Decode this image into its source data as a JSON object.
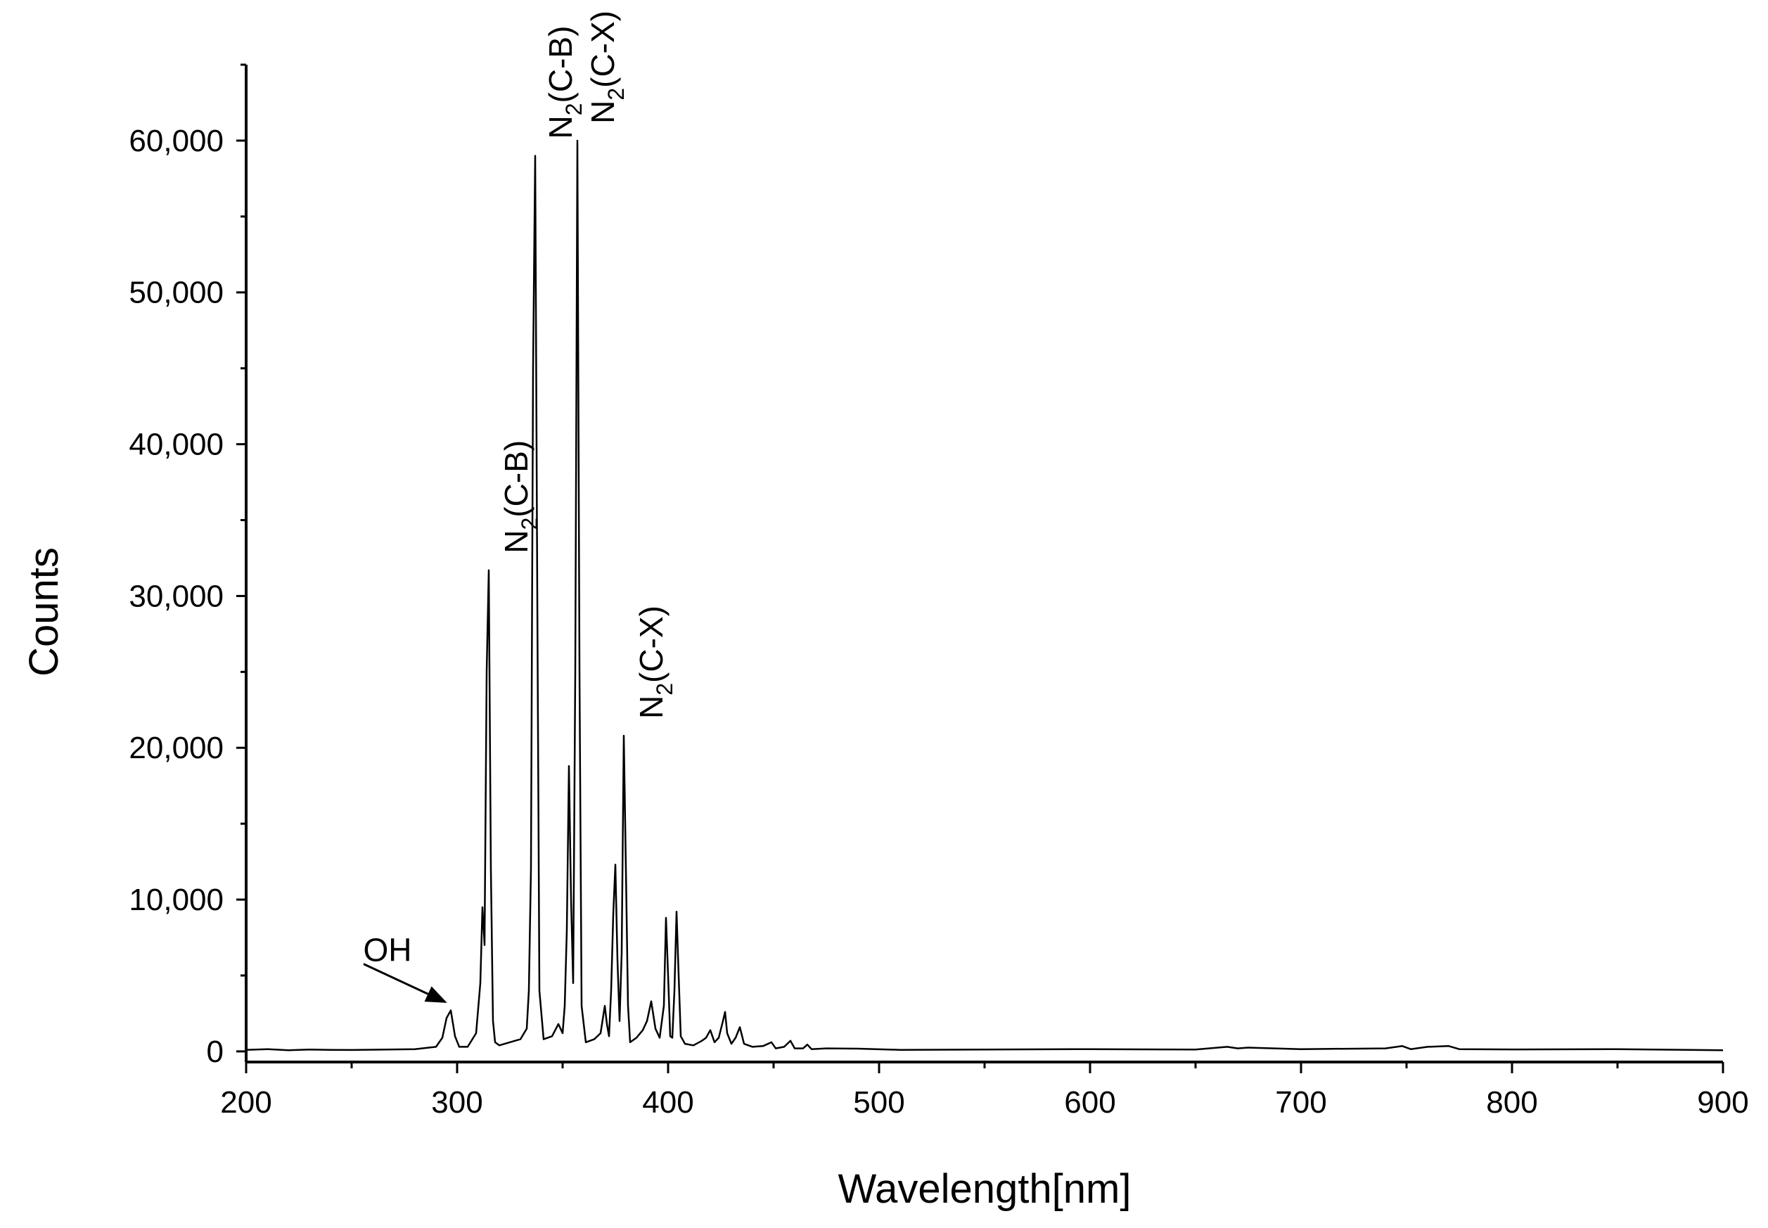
{
  "chart_data": {
    "type": "line",
    "xlabel": "Wavelength[nm]",
    "ylabel": "Counts",
    "xlim": [
      200,
      900
    ],
    "ylim": [
      -700,
      65000
    ],
    "x_ticks": [
      {
        "value": 200,
        "label": "200"
      },
      {
        "value": 300,
        "label": "300"
      },
      {
        "value": 400,
        "label": "400"
      },
      {
        "value": 500,
        "label": "500"
      },
      {
        "value": 600,
        "label": "600"
      },
      {
        "value": 700,
        "label": "700"
      },
      {
        "value": 800,
        "label": "800"
      },
      {
        "value": 900,
        "label": "900"
      }
    ],
    "y_ticks": [
      {
        "value": 0,
        "label": "0"
      },
      {
        "value": 10000,
        "label": "10,000"
      },
      {
        "value": 20000,
        "label": "20,000"
      },
      {
        "value": 30000,
        "label": "30,000"
      },
      {
        "value": 40000,
        "label": "40,000"
      },
      {
        "value": 50000,
        "label": "50,000"
      },
      {
        "value": 60000,
        "label": "60,000"
      }
    ],
    "grid": false,
    "line_color": "#000000",
    "series": [
      {
        "x": [
          200,
          210,
          220,
          230,
          240,
          250,
          260,
          270,
          280,
          290,
          293,
          295,
          297,
          299,
          301,
          305,
          309,
          311,
          312,
          313,
          314,
          315,
          316,
          317,
          318,
          320,
          325,
          330,
          333,
          334,
          335,
          336,
          337,
          338,
          339,
          341,
          345,
          348,
          350,
          351,
          352,
          353,
          354,
          355,
          356,
          357,
          358,
          359,
          361,
          365,
          368,
          370,
          371,
          372,
          373,
          374,
          375,
          376,
          377,
          378,
          379,
          380,
          381,
          382,
          385,
          388,
          390,
          392,
          394,
          396,
          398,
          399,
          400,
          401,
          402,
          403,
          404,
          405,
          406,
          408,
          412,
          416,
          418,
          420,
          422,
          424,
          426,
          427,
          428,
          430,
          432,
          434,
          436,
          440,
          445,
          449,
          451,
          455,
          458,
          460,
          464,
          466,
          468,
          475,
          490,
          510,
          550,
          600,
          650,
          665,
          670,
          675,
          700,
          740,
          748,
          752,
          760,
          770,
          775,
          800,
          850,
          900
        ],
        "y": [
          100,
          150,
          80,
          120,
          100,
          90,
          110,
          130,
          150,
          300,
          900,
          2200,
          2700,
          1000,
          300,
          300,
          1200,
          4500,
          9500,
          7000,
          25000,
          31700,
          12000,
          2000,
          600,
          400,
          600,
          800,
          1500,
          4000,
          12000,
          45000,
          59000,
          30000,
          4000,
          800,
          1000,
          1800,
          1200,
          3000,
          8000,
          18800,
          10000,
          4500,
          25000,
          60000,
          25000,
          3000,
          600,
          800,
          1200,
          3000,
          1800,
          1000,
          4000,
          9000,
          12300,
          6000,
          2000,
          6500,
          20800,
          12000,
          3000,
          600,
          900,
          1400,
          2000,
          3300,
          1500,
          900,
          3000,
          8800,
          5000,
          1000,
          900,
          4000,
          9200,
          5000,
          1000,
          500,
          400,
          700,
          900,
          1400,
          600,
          900,
          2000,
          2600,
          1200,
          500,
          900,
          1600,
          500,
          300,
          350,
          600,
          200,
          300,
          700,
          200,
          200,
          450,
          150,
          200,
          180,
          100,
          120,
          150,
          120,
          300,
          200,
          250,
          150,
          200,
          350,
          150,
          300,
          350,
          150,
          130,
          150,
          80
        ]
      }
    ],
    "annotations": [
      {
        "name": "OH",
        "main": "OH",
        "sub": "",
        "suffix": "",
        "x": 297,
        "y": 2700
      },
      {
        "name": "N2-CB-316",
        "main": "N",
        "sub": "2",
        "suffix": "(C-B)",
        "x": 316,
        "y": 31700
      },
      {
        "name": "N2-CB-337",
        "main": "N",
        "sub": "2",
        "suffix": "(C-B)",
        "x": 337,
        "y": 59000
      },
      {
        "name": "N2-CX-357",
        "main": "N",
        "sub": "2",
        "suffix": "(C-X)",
        "x": 357,
        "y": 60000
      },
      {
        "name": "N2-CX-380",
        "main": "N",
        "sub": "2",
        "suffix": "(C-X)",
        "x": 380,
        "y": 20800
      }
    ]
  }
}
